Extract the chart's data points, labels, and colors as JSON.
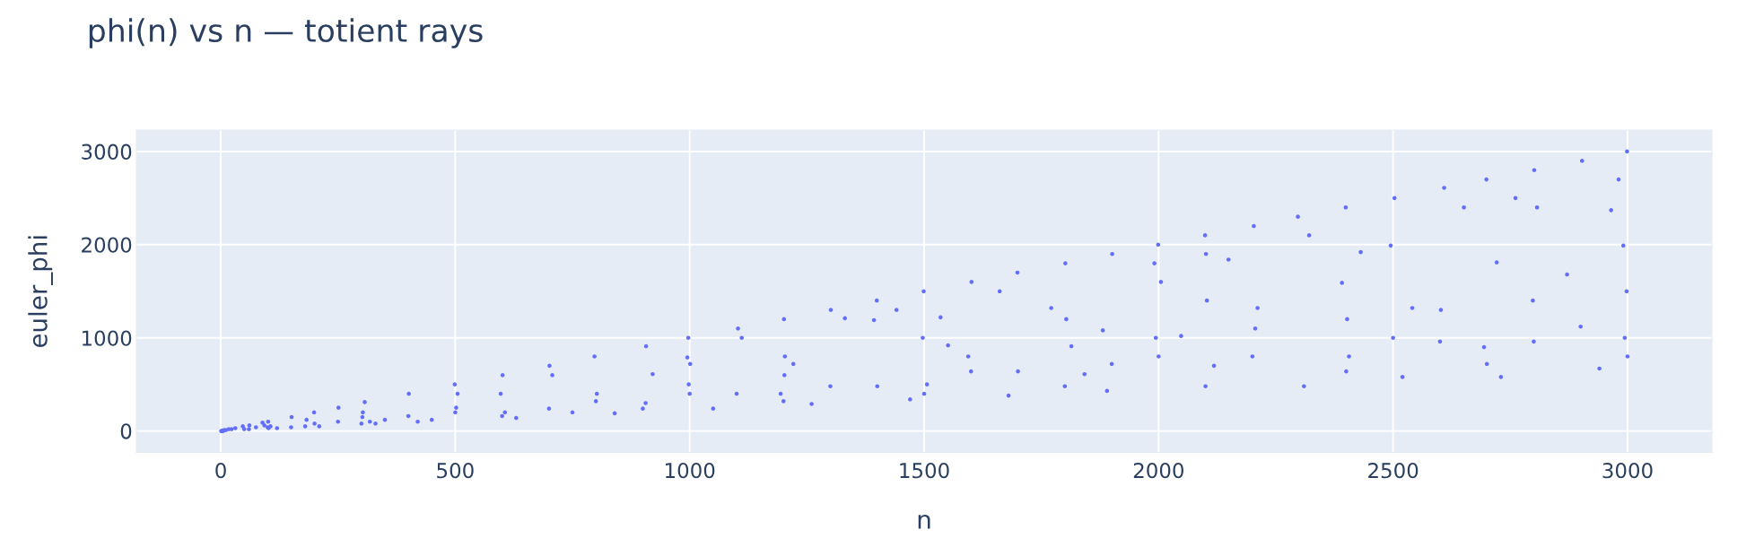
{
  "chart_data": {
    "type": "scatter",
    "title": "phi(n) vs n — totient rays",
    "xlabel": "n",
    "ylabel": "euler_phi",
    "color": "#636efa",
    "marker": "circle",
    "grid": true,
    "xlim": [
      -180,
      3180
    ],
    "ylim": [
      -230,
      3230
    ],
    "xticks": [
      0,
      500,
      1000,
      1500,
      2000,
      2500,
      3000
    ],
    "yticks": [
      0,
      1000,
      2000,
      3000
    ],
    "x": [
      1,
      2,
      3,
      5,
      7,
      11,
      17,
      23,
      31,
      47,
      50,
      60,
      61,
      75,
      89,
      93,
      100,
      101,
      102,
      106,
      120,
      150,
      151,
      180,
      183,
      199,
      200,
      210,
      250,
      251,
      300,
      302,
      303,
      307,
      318,
      330,
      350,
      400,
      401,
      420,
      450,
      499,
      500,
      502,
      505,
      597,
      600,
      601,
      606,
      630,
      700,
      701,
      707,
      750,
      797,
      800,
      802,
      840,
      900,
      906,
      907,
      921,
      995,
      997,
      998,
      1000,
      1001,
      1050,
      1100,
      1103,
      1111,
      1194,
      1200,
      1201,
      1202,
      1203,
      1221,
      1260,
      1300,
      1301,
      1331,
      1393,
      1399,
      1400,
      1441,
      1470,
      1497,
      1499,
      1500,
      1506,
      1535,
      1551,
      1594,
      1600,
      1601,
      1661,
      1680,
      1699,
      1700,
      1771,
      1800,
      1801,
      1803,
      1814,
      1842,
      1881,
      1890,
      1900,
      1901,
      1991,
      1994,
      1999,
      2000,
      2005,
      2048,
      2099,
      2100,
      2101,
      2103,
      2118,
      2149,
      2200,
      2203,
      2206,
      2211,
      2297,
      2310,
      2321,
      2391,
      2399,
      2400,
      2402,
      2406,
      2431,
      2495,
      2500,
      2503,
      2520,
      2541,
      2600,
      2602,
      2609,
      2651,
      2694,
      2699,
      2700,
      2721,
      2730,
      2761,
      2798,
      2800,
      2801,
      2807,
      2871,
      2900,
      2903,
      2940,
      2965,
      2981,
      2991,
      2994,
      2998,
      2999,
      3000
    ],
    "values": [
      0,
      0,
      0,
      0,
      10,
      10,
      20,
      20,
      30,
      50,
      20,
      20,
      60,
      40,
      90,
      60,
      40,
      100,
      30,
      50,
      30,
      40,
      150,
      50,
      120,
      200,
      80,
      50,
      100,
      250,
      80,
      150,
      200,
      310,
      100,
      80,
      120,
      160,
      400,
      100,
      120,
      500,
      200,
      250,
      400,
      400,
      160,
      600,
      200,
      140,
      240,
      700,
      600,
      200,
      800,
      320,
      400,
      190,
      240,
      300,
      910,
      610,
      790,
      1000,
      500,
      400,
      720,
      240,
      400,
      1100,
      1000,
      400,
      320,
      1200,
      600,
      800,
      720,
      290,
      480,
      1300,
      1210,
      1190,
      1400,
      480,
      1300,
      340,
      1000,
      1500,
      400,
      500,
      1220,
      920,
      800,
      640,
      1600,
      1500,
      380,
      1700,
      640,
      1320,
      480,
      1800,
      1200,
      910,
      610,
      1080,
      430,
      720,
      1900,
      1800,
      1000,
      2000,
      800,
      1600,
      1020,
      2100,
      480,
      1900,
      1400,
      700,
      1840,
      800,
      2200,
      1100,
      1320,
      2300,
      480,
      2100,
      1590,
      2400,
      640,
      1200,
      800,
      1920,
      1990,
      1000,
      2500,
      580,
      1320,
      960,
      1300,
      2610,
      2400,
      900,
      2700,
      720,
      1810,
      580,
      2500,
      1400,
      960,
      2800,
      2400,
      1680,
      1120,
      2900,
      670,
      2370,
      2700,
      1990,
      1000,
      1500,
      3000,
      800
    ]
  }
}
